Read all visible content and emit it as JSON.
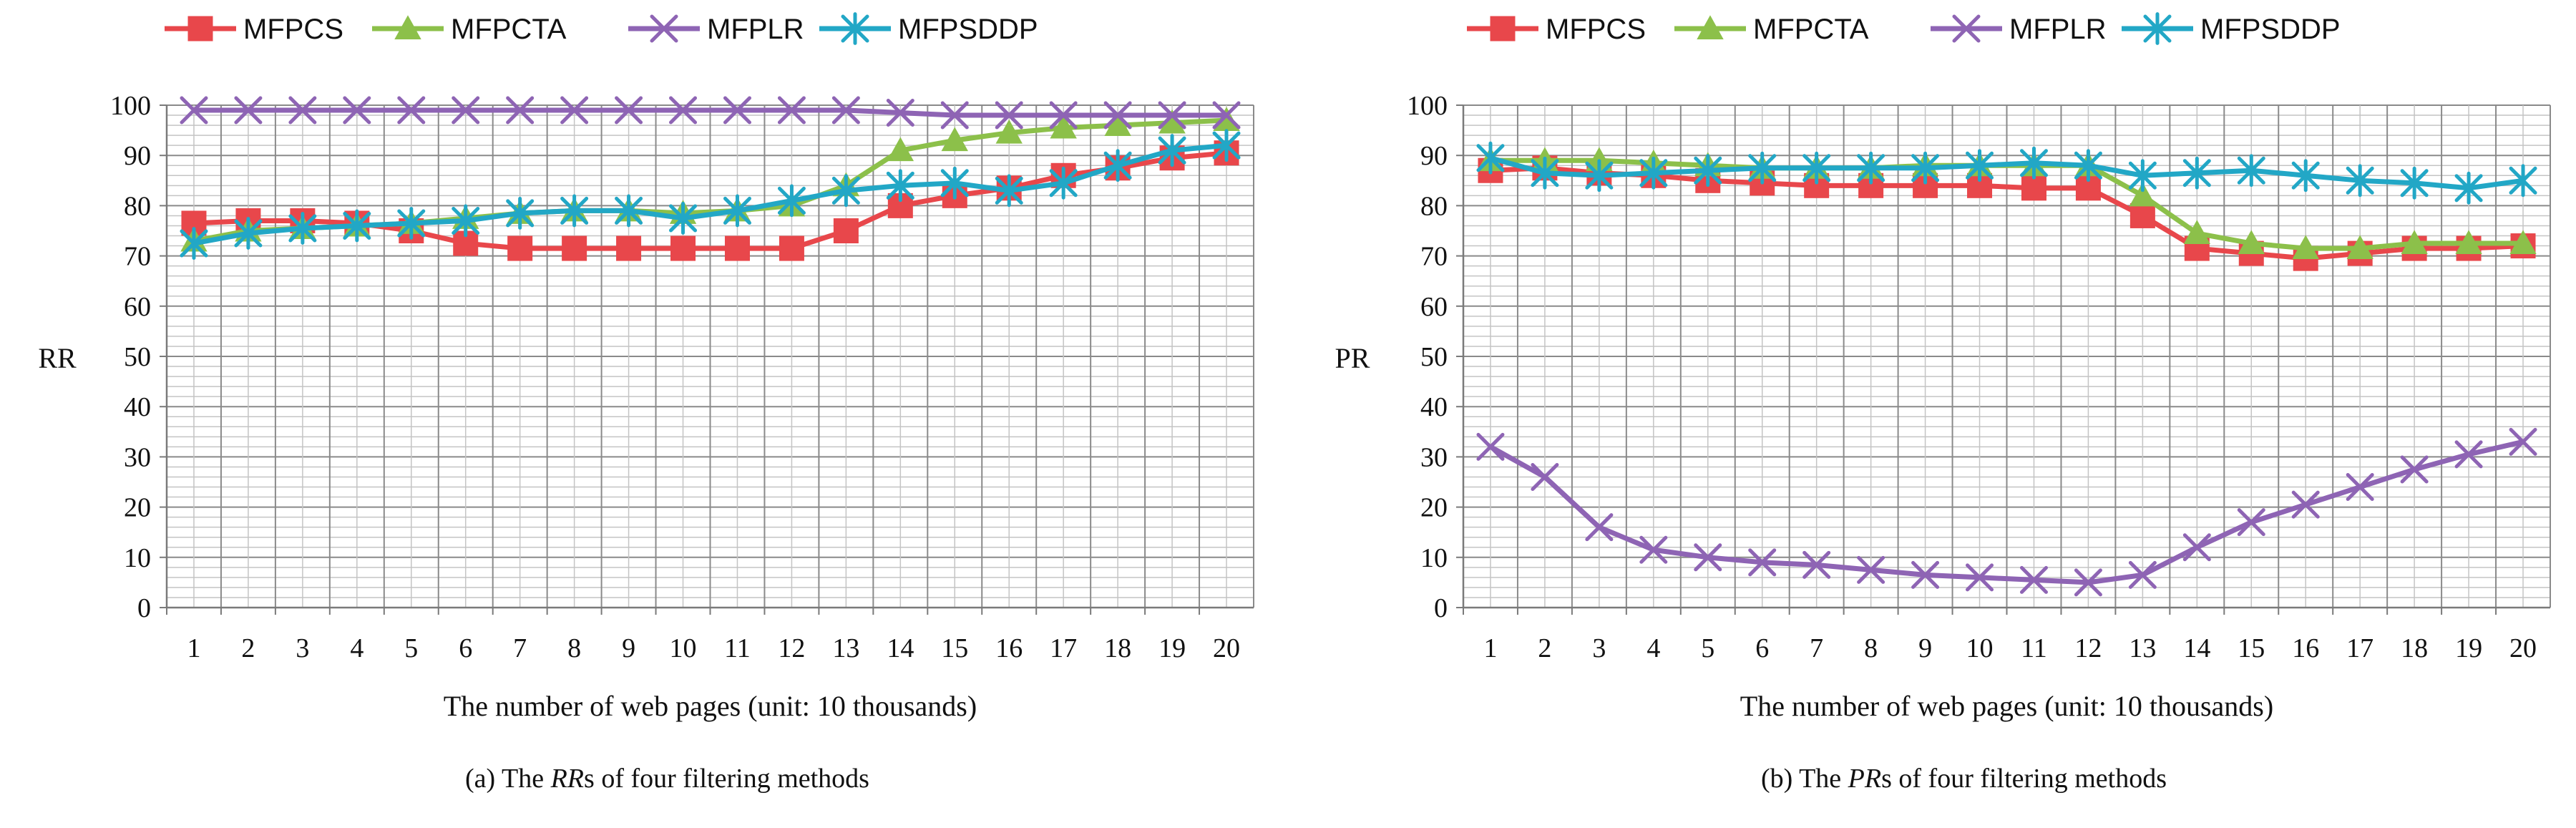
{
  "chart_data": [
    {
      "type": "line",
      "id": "rr",
      "ylabel": "RR",
      "xlabel": "The number of web pages (unit: 10 thousands)",
      "caption_prefix": "(a) The ",
      "caption_italic": "RR",
      "caption_suffix": "s of four filtering methods",
      "ylim": [
        0,
        100
      ],
      "yticks": [
        0,
        10,
        20,
        30,
        40,
        50,
        60,
        70,
        80,
        90,
        100
      ],
      "categories": [
        "1",
        "2",
        "3",
        "4",
        "5",
        "6",
        "7",
        "8",
        "9",
        "10",
        "11",
        "12",
        "13",
        "14",
        "15",
        "16",
        "17",
        "18",
        "19",
        "20"
      ],
      "grid": true,
      "legend_position": "top",
      "series": [
        {
          "name": "MFPCS",
          "color": "#e8474b",
          "marker": "square",
          "values": [
            76.5,
            77,
            77,
            76.5,
            75,
            72.5,
            71.5,
            71.5,
            71.5,
            71.5,
            71.5,
            71.5,
            75,
            80,
            82,
            83.5,
            86,
            87.5,
            89.5,
            90.5
          ]
        },
        {
          "name": "MFPCTA",
          "color": "#8cc04a",
          "marker": "triangle",
          "values": [
            73,
            75,
            75.5,
            76,
            76.5,
            77.5,
            78.5,
            79,
            79,
            78.5,
            79,
            80,
            84,
            91,
            93,
            94.5,
            95.5,
            96,
            96.5,
            97
          ]
        },
        {
          "name": "MFPLR",
          "color": "#8e64b4",
          "marker": "x",
          "values": [
            99,
            99,
            99,
            99,
            99,
            99,
            99,
            99,
            99,
            99,
            99,
            99,
            99,
            98.5,
            98,
            98,
            98,
            98,
            98,
            98
          ]
        },
        {
          "name": "MFPSDDP",
          "color": "#22a7c6",
          "marker": "asterisk",
          "values": [
            72.5,
            74.5,
            75.5,
            76,
            76.5,
            77,
            78.5,
            79,
            79,
            77.5,
            79,
            81,
            83,
            84,
            84.5,
            83,
            84.5,
            88,
            91,
            92
          ]
        }
      ]
    },
    {
      "type": "line",
      "id": "pr",
      "ylabel": "PR",
      "xlabel": "The number of web pages (unit: 10 thousands)",
      "caption_prefix": "(b) The ",
      "caption_italic": "PR",
      "caption_suffix": "s of four filtering methods",
      "ylim": [
        0,
        100
      ],
      "yticks": [
        0,
        10,
        20,
        30,
        40,
        50,
        60,
        70,
        80,
        90,
        100
      ],
      "categories": [
        "1",
        "2",
        "3",
        "4",
        "5",
        "6",
        "7",
        "8",
        "9",
        "10",
        "11",
        "12",
        "13",
        "14",
        "15",
        "16",
        "17",
        "18",
        "19",
        "20"
      ],
      "grid": true,
      "legend_position": "top",
      "series": [
        {
          "name": "MFPCS",
          "color": "#e8474b",
          "marker": "square",
          "values": [
            87,
            87.5,
            86.5,
            86,
            85,
            84.5,
            84,
            84,
            84,
            84,
            83.5,
            83.5,
            78,
            71.5,
            70.5,
            69.5,
            70.5,
            71.5,
            71.5,
            72
          ]
        },
        {
          "name": "MFPCTA",
          "color": "#8cc04a",
          "marker": "triangle",
          "values": [
            89,
            89,
            89,
            88.5,
            88,
            87.5,
            87.5,
            87.5,
            88,
            88,
            88,
            88,
            82,
            74.5,
            72.5,
            71.5,
            71.5,
            72.5,
            72.5,
            72.5
          ]
        },
        {
          "name": "MFPLR",
          "color": "#8e64b4",
          "marker": "x",
          "values": [
            32,
            26,
            16,
            11.5,
            10,
            9,
            8.5,
            7.5,
            6.5,
            6,
            5.5,
            5,
            6.5,
            12,
            17,
            20.5,
            24,
            27.5,
            30.5,
            33
          ]
        },
        {
          "name": "MFPSDDP",
          "color": "#22a7c6",
          "marker": "asterisk",
          "values": [
            89.5,
            86.5,
            86,
            86.5,
            87,
            87.5,
            87.5,
            87.5,
            87.5,
            88,
            88.5,
            88,
            86,
            86.5,
            87,
            86,
            85,
            84.5,
            83.5,
            85
          ]
        }
      ]
    }
  ]
}
